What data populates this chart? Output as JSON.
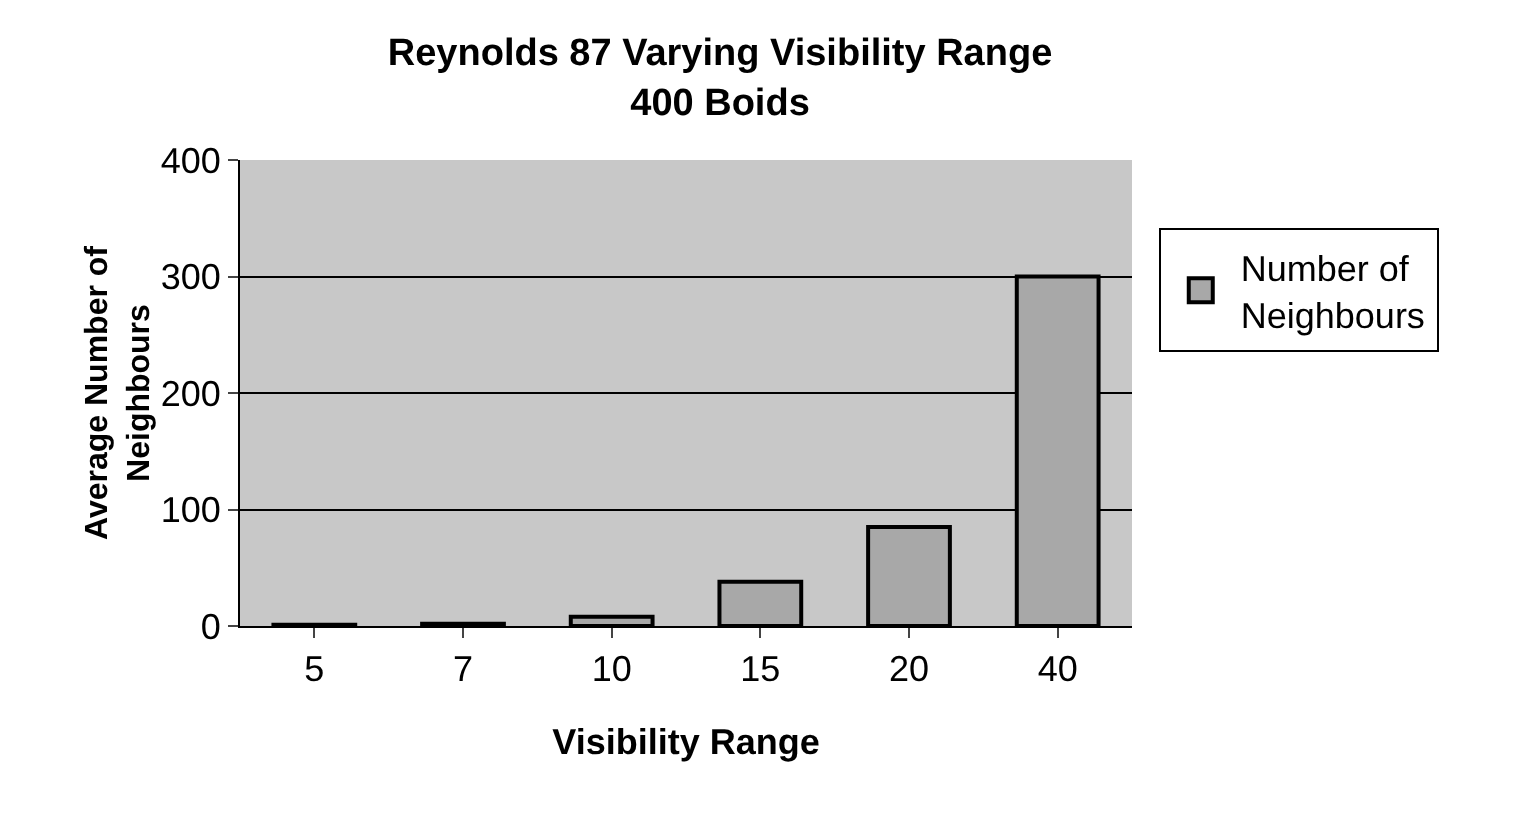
{
  "chart_data": {
    "type": "bar",
    "title": "Reynolds 87 Varying Visibility Range\n400 Boids",
    "xlabel": "Visibility Range",
    "ylabel": "Average Number of\nNeighbours",
    "categories": [
      "5",
      "7",
      "10",
      "15",
      "20",
      "40"
    ],
    "series": [
      {
        "name": "Number of\nNeighbours",
        "color": "#a8a8a8",
        "values": [
          1,
          2,
          8,
          38,
          85,
          300
        ]
      }
    ],
    "ylim": [
      0,
      400
    ],
    "yticks": [
      0,
      100,
      200,
      300,
      400
    ],
    "grid": "y",
    "legend": "right"
  }
}
